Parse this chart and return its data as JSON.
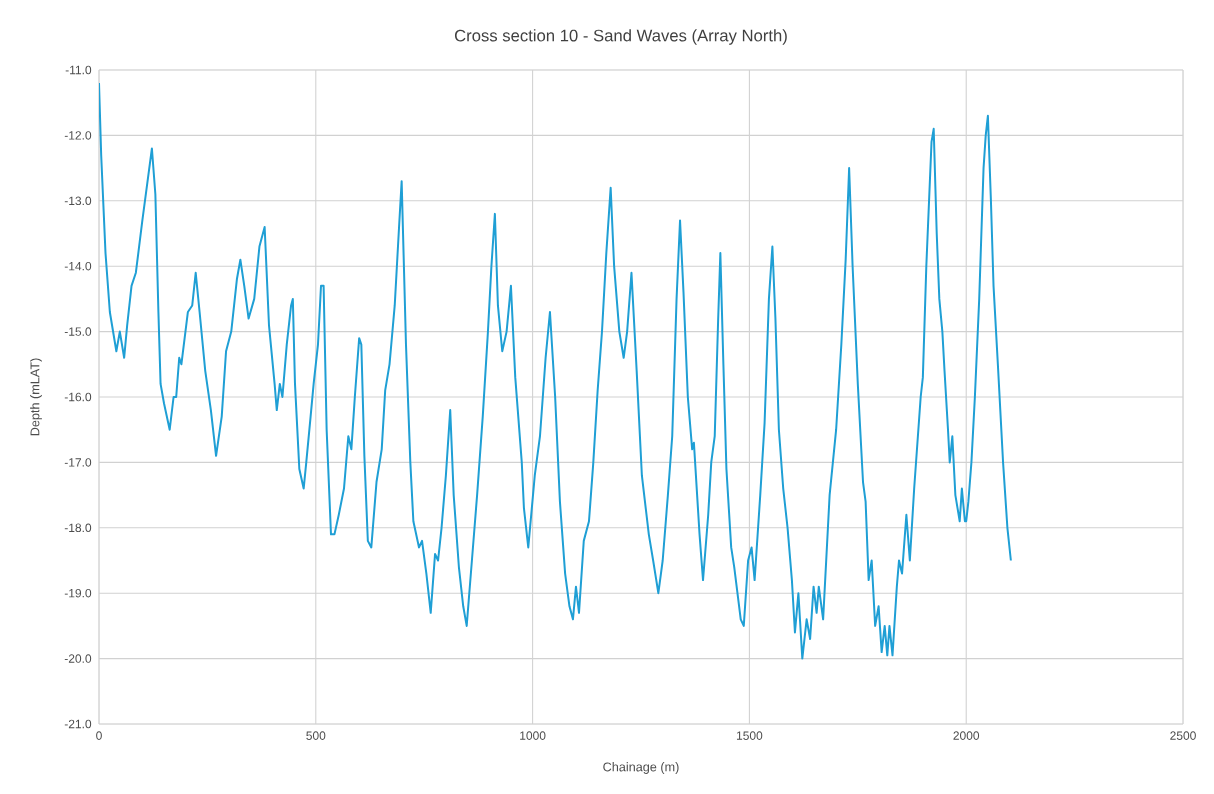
{
  "chart_data": {
    "type": "line",
    "title": "Cross section 10 - Sand Waves (Array North)",
    "xlabel": "Chainage (m)",
    "ylabel": "Depth (mLAT)",
    "xlim": [
      0,
      2500
    ],
    "xticks": [
      0,
      500,
      1000,
      1500,
      2000,
      2500
    ],
    "ylim": [
      -21,
      -11
    ],
    "yticks": [
      {
        "value": -11,
        "label": "-11.0"
      },
      {
        "value": -12,
        "label": "-12.0"
      },
      {
        "value": -13,
        "label": "-13.0"
      },
      {
        "value": -14,
        "label": "-14.0"
      },
      {
        "value": -15,
        "label": "-15.0"
      },
      {
        "value": -16,
        "label": "-16.0"
      },
      {
        "value": -17,
        "label": "-17.0"
      },
      {
        "value": -18,
        "label": "-18.0"
      },
      {
        "value": -19,
        "label": "-19.0"
      },
      {
        "value": -20,
        "label": "-20.0"
      },
      {
        "value": -21,
        "label": "-21.0"
      }
    ],
    "grid": true,
    "marker": "none",
    "line_style": "solid",
    "x": [
      0,
      5,
      15,
      25,
      40,
      48,
      58,
      65,
      75,
      85,
      100,
      110,
      122,
      130,
      137,
      142,
      150,
      163,
      172,
      178,
      185,
      190,
      205,
      215,
      223,
      232,
      245,
      258,
      270,
      283,
      293,
      305,
      318,
      326,
      335,
      345,
      358,
      370,
      382,
      392,
      405,
      410,
      417,
      423,
      433,
      443,
      447,
      452,
      462,
      472,
      478,
      488,
      495,
      505,
      512,
      518,
      525,
      535,
      543,
      553,
      565,
      575,
      582,
      590,
      600,
      605,
      612,
      620,
      628,
      640,
      652,
      660,
      670,
      682,
      692,
      698,
      708,
      718,
      725,
      738,
      745,
      755,
      765,
      775,
      782,
      790,
      800,
      810,
      818,
      830,
      840,
      848,
      860,
      872,
      885,
      897,
      905,
      913,
      920,
      930,
      940,
      950,
      960,
      975,
      980,
      990,
      1005,
      1017,
      1030,
      1040,
      1052,
      1063,
      1075,
      1085,
      1093,
      1100,
      1107,
      1118,
      1130,
      1140,
      1150,
      1160,
      1170,
      1180,
      1188,
      1200,
      1210,
      1218,
      1228,
      1240,
      1252,
      1268,
      1278,
      1290,
      1300,
      1312,
      1322,
      1332,
      1340,
      1348,
      1358,
      1368,
      1372,
      1385,
      1393,
      1405,
      1412,
      1420,
      1428,
      1433,
      1440,
      1447,
      1458,
      1465,
      1480,
      1487,
      1497,
      1505,
      1512,
      1525,
      1535,
      1545,
      1553,
      1560,
      1568,
      1578,
      1588,
      1598,
      1605,
      1613,
      1622,
      1632,
      1640,
      1648,
      1655,
      1660,
      1670,
      1685,
      1700,
      1712,
      1722,
      1730,
      1738,
      1750,
      1762,
      1768,
      1775,
      1782,
      1790,
      1798,
      1805,
      1812,
      1818,
      1823,
      1830,
      1840,
      1845,
      1852,
      1862,
      1870,
      1880,
      1895,
      1900,
      1908,
      1920,
      1925,
      1932,
      1938,
      1945,
      1950,
      1958,
      1962,
      1968,
      1975,
      1985,
      1990,
      1997,
      2000,
      2005,
      2012,
      2020,
      2030,
      2040,
      2045,
      2050,
      2057,
      2063,
      2073,
      2085,
      2095,
      2103
    ],
    "series": [
      {
        "color": "#1f9fd5",
        "values": [
          -11.2,
          -12.3,
          -13.8,
          -14.7,
          -15.3,
          -15.0,
          -15.4,
          -14.9,
          -14.3,
          -14.1,
          -13.3,
          -12.8,
          -12.2,
          -12.9,
          -14.7,
          -15.8,
          -16.1,
          -16.5,
          -16.0,
          -16.0,
          -15.4,
          -15.5,
          -14.7,
          -14.6,
          -14.1,
          -14.7,
          -15.6,
          -16.2,
          -16.9,
          -16.3,
          -15.3,
          -15.0,
          -14.2,
          -13.9,
          -14.3,
          -14.8,
          -14.5,
          -13.7,
          -13.4,
          -14.9,
          -15.8,
          -16.2,
          -15.8,
          -16.0,
          -15.2,
          -14.6,
          -14.5,
          -15.8,
          -17.1,
          -17.4,
          -17.0,
          -16.3,
          -15.8,
          -15.2,
          -14.3,
          -14.3,
          -16.5,
          -18.1,
          -18.1,
          -17.8,
          -17.4,
          -16.6,
          -16.8,
          -16.0,
          -15.1,
          -15.2,
          -16.9,
          -18.2,
          -18.3,
          -17.3,
          -16.8,
          -15.9,
          -15.5,
          -14.6,
          -13.4,
          -12.7,
          -15.2,
          -17.0,
          -17.9,
          -18.3,
          -18.2,
          -18.7,
          -19.3,
          -18.4,
          -18.5,
          -18.0,
          -17.2,
          -16.2,
          -17.5,
          -18.6,
          -19.2,
          -19.5,
          -18.5,
          -17.5,
          -16.3,
          -15.0,
          -14.0,
          -13.2,
          -14.6,
          -15.3,
          -15.0,
          -14.3,
          -15.7,
          -17.0,
          -17.7,
          -18.3,
          -17.2,
          -16.6,
          -15.4,
          -14.7,
          -16.0,
          -17.6,
          -18.7,
          -19.2,
          -19.4,
          -18.9,
          -19.3,
          -18.2,
          -17.9,
          -17.0,
          -15.9,
          -15.0,
          -13.8,
          -12.8,
          -14.0,
          -15.0,
          -15.4,
          -15.0,
          -14.1,
          -15.6,
          -17.2,
          -18.1,
          -18.5,
          -19.0,
          -18.5,
          -17.5,
          -16.6,
          -14.5,
          -13.3,
          -14.4,
          -16.0,
          -16.8,
          -16.7,
          -18.1,
          -18.8,
          -17.8,
          -17.0,
          -16.6,
          -14.8,
          -13.8,
          -15.5,
          -17.1,
          -18.3,
          -18.6,
          -19.4,
          -19.5,
          -18.5,
          -18.3,
          -18.8,
          -17.5,
          -16.4,
          -14.5,
          -13.7,
          -14.8,
          -16.5,
          -17.4,
          -18.0,
          -18.8,
          -19.6,
          -19.0,
          -20.0,
          -19.4,
          -19.7,
          -18.9,
          -19.3,
          -18.9,
          -19.4,
          -17.5,
          -16.5,
          -15.2,
          -13.9,
          -12.5,
          -14.0,
          -15.8,
          -17.3,
          -17.6,
          -18.8,
          -18.5,
          -19.5,
          -19.2,
          -19.9,
          -19.5,
          -19.95,
          -19.5,
          -19.95,
          -18.9,
          -18.5,
          -18.7,
          -17.8,
          -18.5,
          -17.4,
          -16.0,
          -15.7,
          -14.0,
          -12.1,
          -11.9,
          -13.5,
          -14.5,
          -15.0,
          -15.6,
          -16.5,
          -17.0,
          -16.6,
          -17.5,
          -17.9,
          -17.4,
          -17.9,
          -17.9,
          -17.6,
          -17.0,
          -16.0,
          -14.5,
          -12.5,
          -12.0,
          -11.7,
          -13.0,
          -14.3,
          -15.5,
          -17.0,
          -18.0,
          -18.5
        ]
      }
    ]
  }
}
